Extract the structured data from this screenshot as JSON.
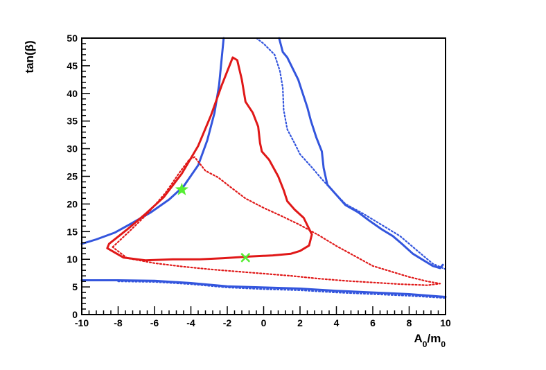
{
  "chart_data": {
    "type": "line",
    "title": "",
    "xlabel": {
      "base": "A",
      "sub1": "0",
      "mid": "/m",
      "sub2": "0"
    },
    "ylabel": "tan(β)",
    "xlim": [
      -10,
      10
    ],
    "ylim": [
      0,
      50
    ],
    "x_ticks": [
      "-10",
      "-8",
      "-6",
      "-4",
      "-2",
      "0",
      "2",
      "4",
      "6",
      "8",
      "10"
    ],
    "y_ticks": [
      "0",
      "5",
      "10",
      "15",
      "20",
      "25",
      "30",
      "35",
      "40",
      "45",
      "50"
    ],
    "grid": false,
    "legend": "none",
    "colors": {
      "blue": "#3355dd",
      "red": "#e01818",
      "green": "#55ee33",
      "axis": "#000000"
    },
    "series": [
      {
        "style": "solid",
        "color": "blue",
        "x": [
          -10,
          -9.2,
          -8.2,
          -7.2,
          -6.2,
          -5.2,
          -4.4,
          -3.6,
          -3.1,
          -2.7,
          -2.45,
          -2.3,
          -2.2
        ],
        "y": [
          12.8,
          13.6,
          14.8,
          16.6,
          18.5,
          20.8,
          23.2,
          27,
          31.5,
          36.5,
          41.5,
          46.5,
          50
        ]
      },
      {
        "style": "solid",
        "color": "blue",
        "x": [
          0.85,
          1.05,
          1.3,
          1.6,
          1.9,
          2.1,
          2.4,
          2.6,
          2.9,
          3.2,
          3.3,
          3.5,
          3.9,
          4.5,
          5.2,
          5.8,
          6.5,
          7.1,
          7.6,
          8.2,
          8.8,
          9.3,
          9.7,
          9.85
        ],
        "y": [
          50,
          47.5,
          46.5,
          44.5,
          42.5,
          40.5,
          37.5,
          35,
          32,
          29.5,
          26.5,
          23.5,
          22,
          19.8,
          18.5,
          17,
          15.4,
          14.2,
          12.8,
          11,
          9.8,
          8.8,
          8.4,
          9
        ]
      },
      {
        "style": "solid",
        "color": "blue",
        "x": [
          -10,
          -8,
          -6,
          -4,
          -2,
          0,
          2,
          4,
          6,
          8,
          10
        ],
        "y": [
          6.2,
          6.2,
          6.1,
          5.7,
          5.1,
          4.9,
          4.7,
          4.3,
          4.0,
          3.7,
          3.2
        ]
      },
      {
        "style": "dotted",
        "color": "blue",
        "x": [
          -0.4,
          0.0,
          0.6,
          0.9,
          1.05,
          1.1,
          1.3,
          1.7,
          2.0,
          2.6,
          3.2,
          3.9,
          4.5,
          5.5,
          6.5,
          7.5,
          8.5,
          9.3,
          10
        ],
        "y": [
          50,
          49,
          47,
          44,
          41,
          37,
          33.5,
          31,
          29,
          26.8,
          24.5,
          22,
          20,
          18.2,
          16.2,
          14.2,
          11.4,
          9.2,
          8.2
        ]
      },
      {
        "style": "dotted",
        "color": "blue",
        "x": [
          -8,
          -6,
          -4,
          -2,
          0,
          2,
          4,
          6,
          8,
          10
        ],
        "y": [
          6.0,
          5.9,
          5.5,
          4.9,
          4.6,
          4.4,
          4.0,
          3.7,
          3.4,
          3.0
        ]
      },
      {
        "style": "solid",
        "color": "red",
        "x": [
          -8.5,
          -7.5,
          -6.5,
          -5.5,
          -4.5,
          -3.6,
          -2.9,
          -2.3,
          -1.7,
          -1.45,
          -1.2,
          -1.0,
          -0.6,
          -0.3,
          -0.2,
          -0.1,
          0.3,
          0.8,
          1.1,
          1.3,
          1.7,
          2.2,
          2.5,
          2.65,
          2.5,
          2.0,
          1.5,
          0.5,
          -0.8,
          -2.2,
          -3.5,
          -5.0,
          -6.5,
          -7.7,
          -8.6,
          -8.5
        ],
        "y": [
          12.8,
          15.4,
          18.2,
          21.2,
          25.5,
          30.5,
          36,
          41.5,
          46.5,
          46,
          42.5,
          38.5,
          36.5,
          34,
          31,
          29.5,
          28,
          25,
          22.5,
          20.5,
          19,
          17.5,
          15.5,
          14.5,
          12.5,
          11.5,
          11,
          10.7,
          10.5,
          10.2,
          10.0,
          10.0,
          9.8,
          10.3,
          12.0,
          12.8
        ]
      },
      {
        "style": "dotted",
        "color": "red",
        "x": [
          -8.3,
          -7.4,
          -6.4,
          -5.4,
          -4.6,
          -4.1,
          -3.8,
          -3.2,
          -2.5,
          -1.8,
          -1.0,
          0.0,
          1.0,
          2.0,
          3.0,
          4.0,
          5.0,
          6.0,
          7.0,
          8.0,
          9.0,
          9.7,
          9.0,
          7.5,
          6.0,
          4.5,
          3.0,
          1.5,
          0.0,
          -1.5,
          -3.0,
          -4.5,
          -6.0,
          -7.5,
          -8.3
        ],
        "y": [
          12.2,
          15.0,
          18.2,
          22.0,
          25.8,
          28.0,
          28.5,
          26.0,
          24.8,
          23.0,
          21.0,
          19.3,
          17.8,
          16.2,
          14.4,
          12.4,
          10.6,
          8.8,
          7.8,
          6.8,
          6.0,
          5.6,
          5.3,
          5.5,
          5.8,
          6.1,
          6.5,
          7.0,
          7.4,
          7.8,
          8.2,
          8.7,
          9.3,
          10.2,
          12.2
        ]
      }
    ],
    "markers": [
      {
        "shape": "star",
        "x": -4.5,
        "y": 22.6,
        "color": "green"
      },
      {
        "shape": "cross",
        "x": -1.0,
        "y": 10.3,
        "color": "green"
      }
    ]
  }
}
